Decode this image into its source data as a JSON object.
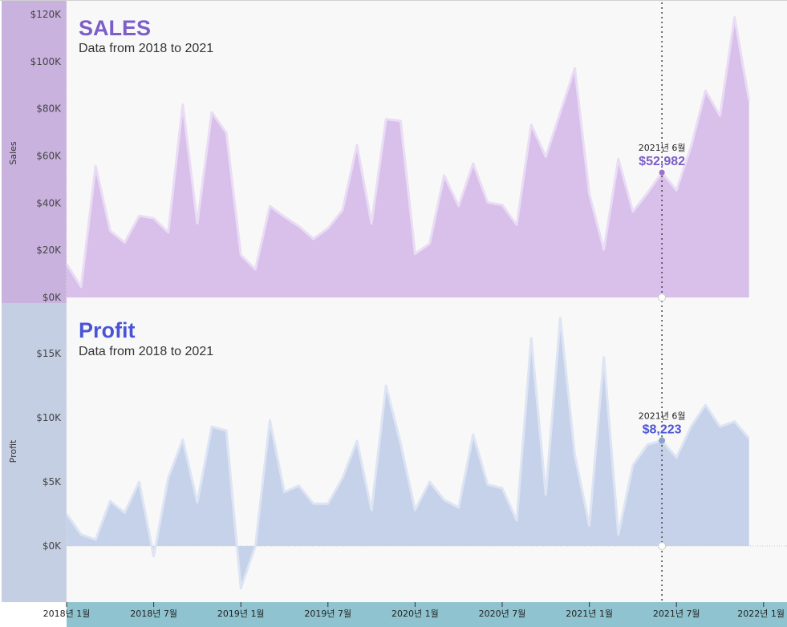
{
  "chart_data": [
    {
      "type": "area",
      "title": "SALES",
      "subtitle": "Data from 2018 to 2021",
      "ylabel": "Sales",
      "ylim": [
        0,
        120000
      ],
      "yticks": [
        0,
        20000,
        40000,
        60000,
        80000,
        100000,
        120000
      ],
      "ytick_labels": [
        "$0K",
        "$20K",
        "$40K",
        "$60K",
        "$80K",
        "$100K",
        "$120K"
      ],
      "x": [
        "2018-01",
        "2018-02",
        "2018-03",
        "2018-04",
        "2018-05",
        "2018-06",
        "2018-07",
        "2018-08",
        "2018-09",
        "2018-10",
        "2018-11",
        "2018-12",
        "2019-01",
        "2019-02",
        "2019-03",
        "2019-04",
        "2019-05",
        "2019-06",
        "2019-07",
        "2019-08",
        "2019-09",
        "2019-10",
        "2019-11",
        "2019-12",
        "2020-01",
        "2020-02",
        "2020-03",
        "2020-04",
        "2020-05",
        "2020-06",
        "2020-07",
        "2020-08",
        "2020-09",
        "2020-10",
        "2020-11",
        "2020-12",
        "2021-01",
        "2021-02",
        "2021-03",
        "2021-04",
        "2021-05",
        "2021-06",
        "2021-07",
        "2021-08",
        "2021-09",
        "2021-10",
        "2021-11",
        "2021-12"
      ],
      "values": [
        14200,
        4500,
        55700,
        28300,
        23300,
        34600,
        33600,
        27600,
        81800,
        31400,
        78500,
        69800,
        18000,
        11900,
        38800,
        34200,
        30200,
        24800,
        29300,
        37000,
        64600,
        31300,
        75600,
        74900,
        18500,
        22800,
        51700,
        38800,
        56800,
        40300,
        39200,
        30800,
        73200,
        59700,
        78500,
        97200,
        43900,
        20300,
        58700,
        36400,
        44300,
        52982,
        45500,
        63800,
        87700,
        77000,
        118800,
        83500
      ],
      "hover": {
        "x_index": 41,
        "date_label": "2021년 6월",
        "value_label": "$52,982"
      },
      "color": "#7b5ec9",
      "fill": "#d8c0ea"
    },
    {
      "type": "area",
      "title": "Profit",
      "subtitle": "Data from 2018 to 2021",
      "ylabel": "Profit",
      "ylim": [
        -3800,
        18000
      ],
      "yticks": [
        0,
        5000,
        10000,
        15000
      ],
      "ytick_labels": [
        "$0K",
        "$5K",
        "$10K",
        "$15K"
      ],
      "x": [
        "2018-01",
        "2018-02",
        "2018-03",
        "2018-04",
        "2018-05",
        "2018-06",
        "2018-07",
        "2018-08",
        "2018-09",
        "2018-10",
        "2018-11",
        "2018-12",
        "2019-01",
        "2019-02",
        "2019-03",
        "2019-04",
        "2019-05",
        "2019-06",
        "2019-07",
        "2019-08",
        "2019-09",
        "2019-10",
        "2019-11",
        "2019-12",
        "2020-01",
        "2020-02",
        "2020-03",
        "2020-04",
        "2020-05",
        "2020-06",
        "2020-07",
        "2020-08",
        "2020-09",
        "2020-10",
        "2020-11",
        "2020-12",
        "2021-01",
        "2021-02",
        "2021-03",
        "2021-04",
        "2021-05",
        "2021-06",
        "2021-07",
        "2021-08",
        "2021-09",
        "2021-10",
        "2021-11",
        "2021-12"
      ],
      "values": [
        2500,
        900,
        500,
        3500,
        2600,
        5000,
        -800,
        5300,
        8300,
        3400,
        9300,
        9000,
        -3300,
        0,
        9800,
        4200,
        4700,
        3300,
        3300,
        5300,
        8200,
        2800,
        12500,
        8000,
        2800,
        5000,
        3600,
        3000,
        8700,
        4800,
        4500,
        2000,
        16200,
        4000,
        17800,
        7100,
        1600,
        14700,
        900,
        6300,
        7900,
        8223,
        6900,
        9300,
        11000,
        9300,
        9700,
        8400
      ],
      "hover": {
        "x_index": 41,
        "date_label": "2021년 6월",
        "value_label": "$8,223"
      },
      "color": "#4a55d6",
      "fill": "#c6d2ea"
    }
  ],
  "x_axis": {
    "tick_labels": [
      "2018년 1월",
      "2018년 7월",
      "2019년 1월",
      "2019년 7월",
      "2020년 1월",
      "2020년 7월",
      "2021년 1월",
      "2021년 7월",
      "2022년 1월"
    ],
    "tick_indices": [
      0,
      6,
      12,
      18,
      24,
      30,
      36,
      42,
      48
    ]
  }
}
